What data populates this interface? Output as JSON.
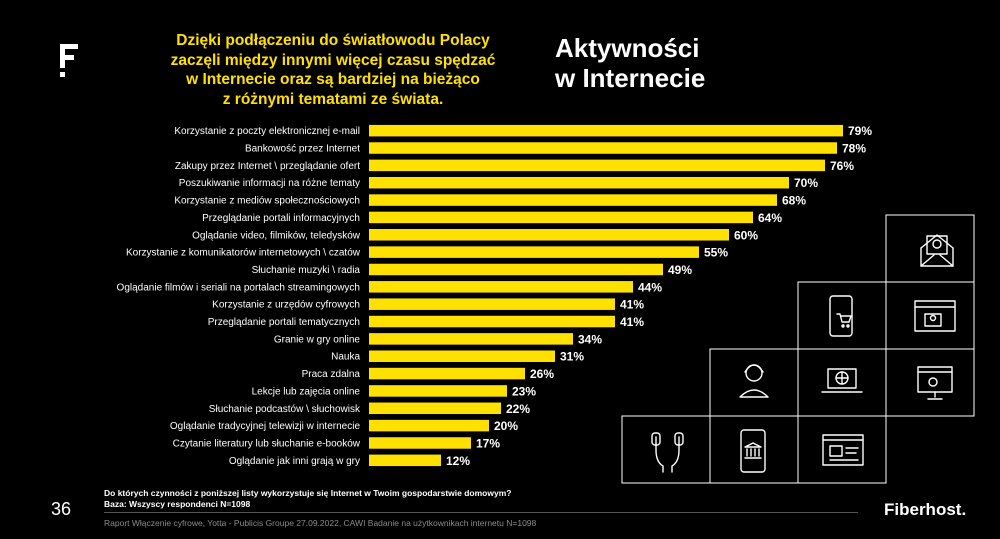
{
  "headline": "Dzięki podłączeniu do światłowodu Polacy\nzaczęli między innymi więcej czasu spędzać\nw Internecie oraz są bardziej na bieżąco\nz różnymi tematami ze świata.",
  "title": "Aktywności\nw Internecie",
  "chart_data": {
    "type": "bar",
    "orientation": "horizontal",
    "categories": [
      "Korzystanie z poczty elektronicznej e-mail",
      "Bankowość przez Internet",
      "Zakupy przez Internet \\ przeglądanie ofert",
      "Poszukiwanie informacji na różne tematy",
      "Korzystanie z mediów społecznościowych",
      "Przeglądanie portali informacyjnych",
      "Oglądanie video, filmików, teledysków",
      "Korzystanie z komunikatorów internetowych \\ czatów",
      "Słuchanie muzyki \\ radia",
      "Oglądanie filmów i seriali na portalach streamingowych",
      "Korzystanie z urzędów cyfrowych",
      "Przeglądanie portali tematycznych",
      "Granie w gry online",
      "Nauka",
      "Praca zdalna",
      "Lekcje lub zajęcia online",
      "Słuchanie podcastów \\ słuchowisk",
      "Oglądanie tradycyjnej telewizji w internecie",
      "Czytanie literatury lub słuchanie e-booków",
      "Oglądanie jak inni grają w gry"
    ],
    "values": [
      79,
      78,
      76,
      70,
      68,
      64,
      60,
      55,
      49,
      44,
      41,
      41,
      34,
      31,
      26,
      23,
      22,
      20,
      17,
      12
    ],
    "value_labels": [
      "79%",
      "78%",
      "76%",
      "70%",
      "68%",
      "64%",
      "60%",
      "55%",
      "49%",
      "44%",
      "41%",
      "41%",
      "34%",
      "31%",
      "26%",
      "23%",
      "22%",
      "20%",
      "17%",
      "12%"
    ],
    "xlim": [
      0,
      100
    ],
    "bar_color": "#ffe100",
    "grid": false,
    "legend": "none"
  },
  "footer": {
    "question": "Do których czynności z poniższej listy wykorzystuje się Internet w Twoim gospodarstwie domowym?",
    "base": "Baza: Wszyscy respondenci N=1098",
    "source": "Raport Włączenie cyfrowe, Yotta - Publicis Groupe 27.09.2022, CAWI Badanie na użytkownikach internetu N=1098",
    "page_number": "36",
    "brand": "Fiberhost."
  },
  "icons": [
    "email-icon",
    "mobile-shopping-icon",
    "video-chat-icon",
    "headset-user-icon",
    "laptop-globe-icon",
    "browser-video-call-icon",
    "earphones-icon",
    "mobile-bank-icon",
    "browser-article-icon"
  ],
  "colors": {
    "accent": "#ffe100",
    "background": "#000000",
    "text": "#ffffff"
  }
}
